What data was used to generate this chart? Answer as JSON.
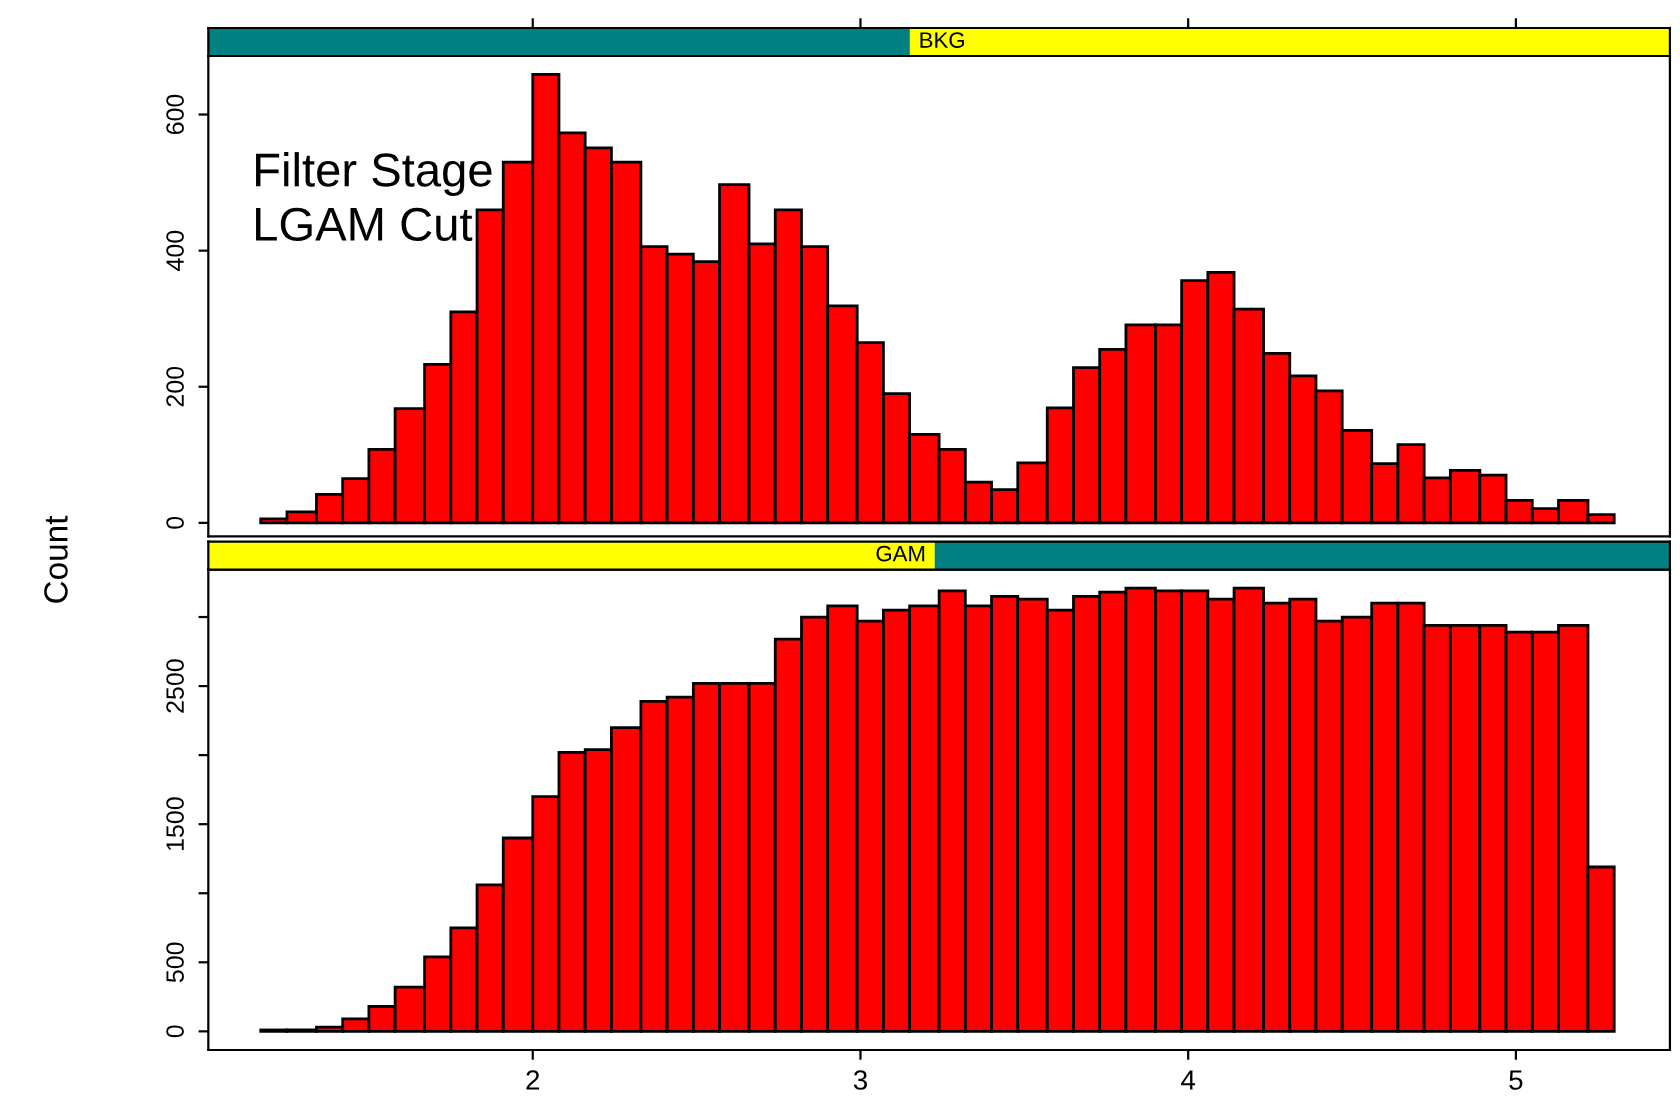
{
  "chart_data": [
    {
      "type": "histogram",
      "title": "BKG",
      "color": "#ff0000",
      "bins": [
        1.17,
        1.25,
        1.34,
        1.42,
        1.5,
        1.58,
        1.67,
        1.75,
        1.83,
        1.91,
        2.0,
        2.08,
        2.16,
        2.24,
        2.33,
        2.41,
        2.49,
        2.57,
        2.66,
        2.74,
        2.82,
        2.9,
        2.99,
        3.07,
        3.15,
        3.24,
        3.32,
        3.4,
        3.48,
        3.57,
        3.65,
        3.73,
        3.81,
        3.9,
        3.98,
        4.06,
        4.14,
        4.23,
        4.31,
        4.39,
        4.47,
        4.56,
        4.64,
        4.72,
        4.8,
        4.89,
        4.97,
        5.05,
        5.13,
        5.22,
        5.3
      ],
      "values": [
        6,
        16,
        42,
        65,
        108,
        168,
        233,
        310,
        460,
        530,
        659,
        573,
        551,
        530,
        406,
        395,
        384,
        497,
        410,
        460,
        406,
        319,
        265,
        190,
        130,
        108,
        60,
        49,
        88,
        169,
        228,
        255,
        291,
        291,
        356,
        368,
        314,
        249,
        216,
        194,
        136,
        87,
        115,
        66,
        77,
        70,
        33,
        21,
        33,
        12
      ],
      "xlim": [
        1.01,
        5.47
      ],
      "xticks": [
        {
          "value": 2,
          "label": null
        },
        {
          "value": 3,
          "label": null
        },
        {
          "value": 4,
          "label": null
        },
        {
          "value": 5,
          "label": null
        }
      ],
      "ylim": [
        -20,
        686
      ],
      "yticks": [
        0,
        200,
        400,
        600
      ],
      "tick_labels": "y",
      "grid": false,
      "legend": false,
      "annotations": [
        "Filter Stage",
        "LGAM Cut"
      ]
    },
    {
      "type": "histogram",
      "title": "GAM",
      "color": "#ff0000",
      "ylabel": "Count",
      "bins": [
        1.17,
        1.25,
        1.34,
        1.42,
        1.5,
        1.58,
        1.67,
        1.75,
        1.83,
        1.91,
        2.0,
        2.08,
        2.16,
        2.24,
        2.33,
        2.41,
        2.49,
        2.57,
        2.66,
        2.74,
        2.82,
        2.9,
        2.99,
        3.07,
        3.15,
        3.24,
        3.32,
        3.4,
        3.48,
        3.57,
        3.65,
        3.73,
        3.81,
        3.9,
        3.98,
        4.06,
        4.14,
        4.23,
        4.31,
        4.39,
        4.47,
        4.56,
        4.64,
        4.72,
        4.8,
        4.89,
        4.97,
        5.05,
        5.13,
        5.22,
        5.3
      ],
      "values": [
        10,
        10,
        30,
        90,
        180,
        320,
        540,
        750,
        1060,
        1400,
        1700,
        2020,
        2040,
        2200,
        2390,
        2420,
        2520,
        2520,
        2520,
        2840,
        3000,
        3080,
        2970,
        3050,
        3080,
        3190,
        3080,
        3150,
        3130,
        3050,
        3150,
        3180,
        3210,
        3190,
        3190,
        3130,
        3210,
        3100,
        3130,
        2970,
        3000,
        3100,
        3100,
        2940,
        2940,
        2940,
        2890,
        2890,
        2940,
        1190
      ],
      "xlim": [
        1.01,
        5.47
      ],
      "xticks": [
        2,
        3,
        4,
        5
      ],
      "ylim": [
        -135,
        3344
      ],
      "yticks": [
        0,
        500,
        {
          "value": 1000,
          "label": null
        },
        1500,
        {
          "value": 2000,
          "label": null
        },
        2500,
        {
          "value": 3000,
          "label": null
        }
      ],
      "grid": false,
      "legend": false
    }
  ]
}
